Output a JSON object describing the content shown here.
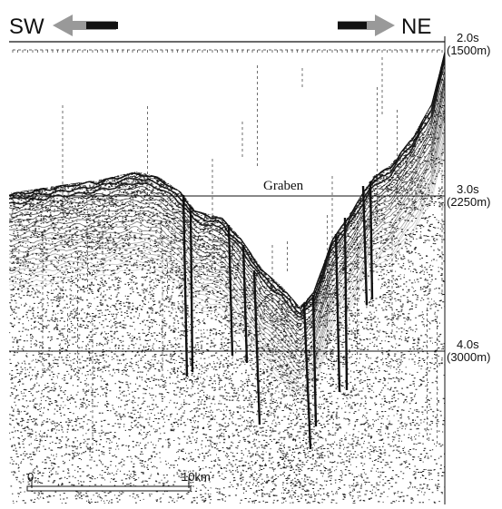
{
  "header": {
    "left_direction": "SW",
    "right_direction": "NE"
  },
  "depth_labels": [
    {
      "time": "2.0s",
      "depth": "(1500m)"
    },
    {
      "time": "3.0s",
      "depth": "(2250m)"
    },
    {
      "time": "4.0s",
      "depth": "(3000m)"
    }
  ],
  "annotation": "Graben",
  "scale_bar": {
    "start": "0",
    "end": "10km"
  }
}
